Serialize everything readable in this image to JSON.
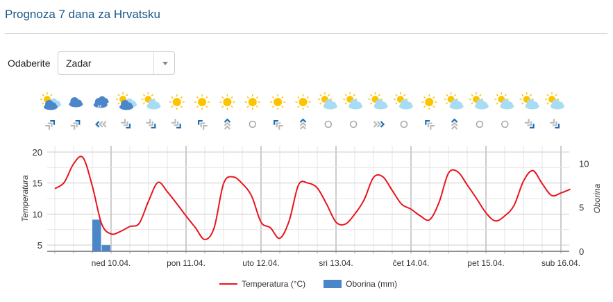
{
  "header": {
    "title": "Prognoza 7 dana za Hrvatsku"
  },
  "selector": {
    "label": "Odaberite",
    "value": "Zadar"
  },
  "forecast_icons": {
    "weather": [
      "partly-cloudy-dark",
      "cloud",
      "thunderstorm",
      "partly-cloudy-dark",
      "partly-cloudy",
      "sun",
      "sun",
      "sun",
      "sun",
      "sun",
      "sun",
      "partly-cloudy",
      "partly-cloudy",
      "partly-cloudy",
      "partly-cloudy",
      "sun",
      "partly-cloudy",
      "partly-cloudy",
      "partly-cloudy",
      "partly-cloudy",
      "partly-cloudy"
    ],
    "wind": [
      "NE",
      "NE",
      "W",
      "SE",
      "SE",
      "SE",
      "NW",
      "N",
      "calm",
      "NW",
      "N",
      "calm",
      "calm",
      "E",
      "calm",
      "NW",
      "N",
      "calm",
      "calm",
      "SE",
      "SE"
    ]
  },
  "colors": {
    "temperature": "#e8141c",
    "precipitation": "#4a86c8",
    "title": "#1a5687"
  },
  "chart_data": {
    "type": "line",
    "x_unit": "hours from ned 10.04. 00:00",
    "x": [
      -18,
      -15,
      -12,
      -9,
      -6,
      -3,
      0,
      3,
      6,
      9,
      12,
      15,
      18,
      21,
      24,
      27,
      30,
      33,
      36,
      39,
      42,
      45,
      48,
      51,
      54,
      57,
      60,
      63,
      66,
      69,
      72,
      75,
      78,
      81,
      84,
      87,
      90,
      93,
      96,
      99,
      102,
      105,
      108,
      111,
      114,
      117,
      120,
      123,
      126,
      129,
      132,
      135,
      138,
      141,
      144,
      147
    ],
    "series": [
      {
        "name": "Temperatura (°C)",
        "type": "line",
        "axis": "left",
        "values": [
          14.1,
          15.1,
          18.1,
          19.1,
          14.5,
          8.4,
          6.8,
          7.2,
          8.0,
          8.5,
          12.1,
          15.1,
          13.6,
          11.7,
          9.7,
          7.8,
          5.9,
          7.8,
          14.9,
          16.0,
          14.9,
          12.9,
          8.7,
          7.8,
          6.1,
          8.9,
          14.7,
          15.0,
          14.2,
          11.6,
          8.7,
          8.4,
          10.0,
          12.3,
          15.9,
          16.0,
          13.8,
          11.6,
          10.8,
          9.7,
          9.1,
          11.9,
          16.6,
          16.8,
          14.7,
          12.5,
          10.2,
          8.9,
          9.7,
          11.4,
          15.3,
          17.0,
          14.9,
          13.0,
          13.4,
          14.0
        ]
      },
      {
        "name": "Oborina (mm)",
        "type": "bar",
        "axis": "right",
        "points": [
          {
            "x": -3,
            "value": 3.6
          },
          {
            "x": 0,
            "value": 0.7
          }
        ]
      }
    ],
    "categories": [
      "ned 10.04.",
      "pon 11.04.",
      "uto 12.04.",
      "sri 13.04.",
      "čet 14.04.",
      "pet 15.04.",
      "sub 16.04."
    ],
    "ylabel": "Temperatura",
    "y2label": "Oborina",
    "yticks": [
      5,
      10,
      15,
      20
    ],
    "y2ticks": [
      0,
      5,
      10
    ],
    "ylim": [
      4,
      21
    ],
    "y2lim": [
      0,
      12
    ],
    "legend": [
      "Temperatura (°C)",
      "Oborina (mm)"
    ],
    "legend_position": "bottom"
  }
}
